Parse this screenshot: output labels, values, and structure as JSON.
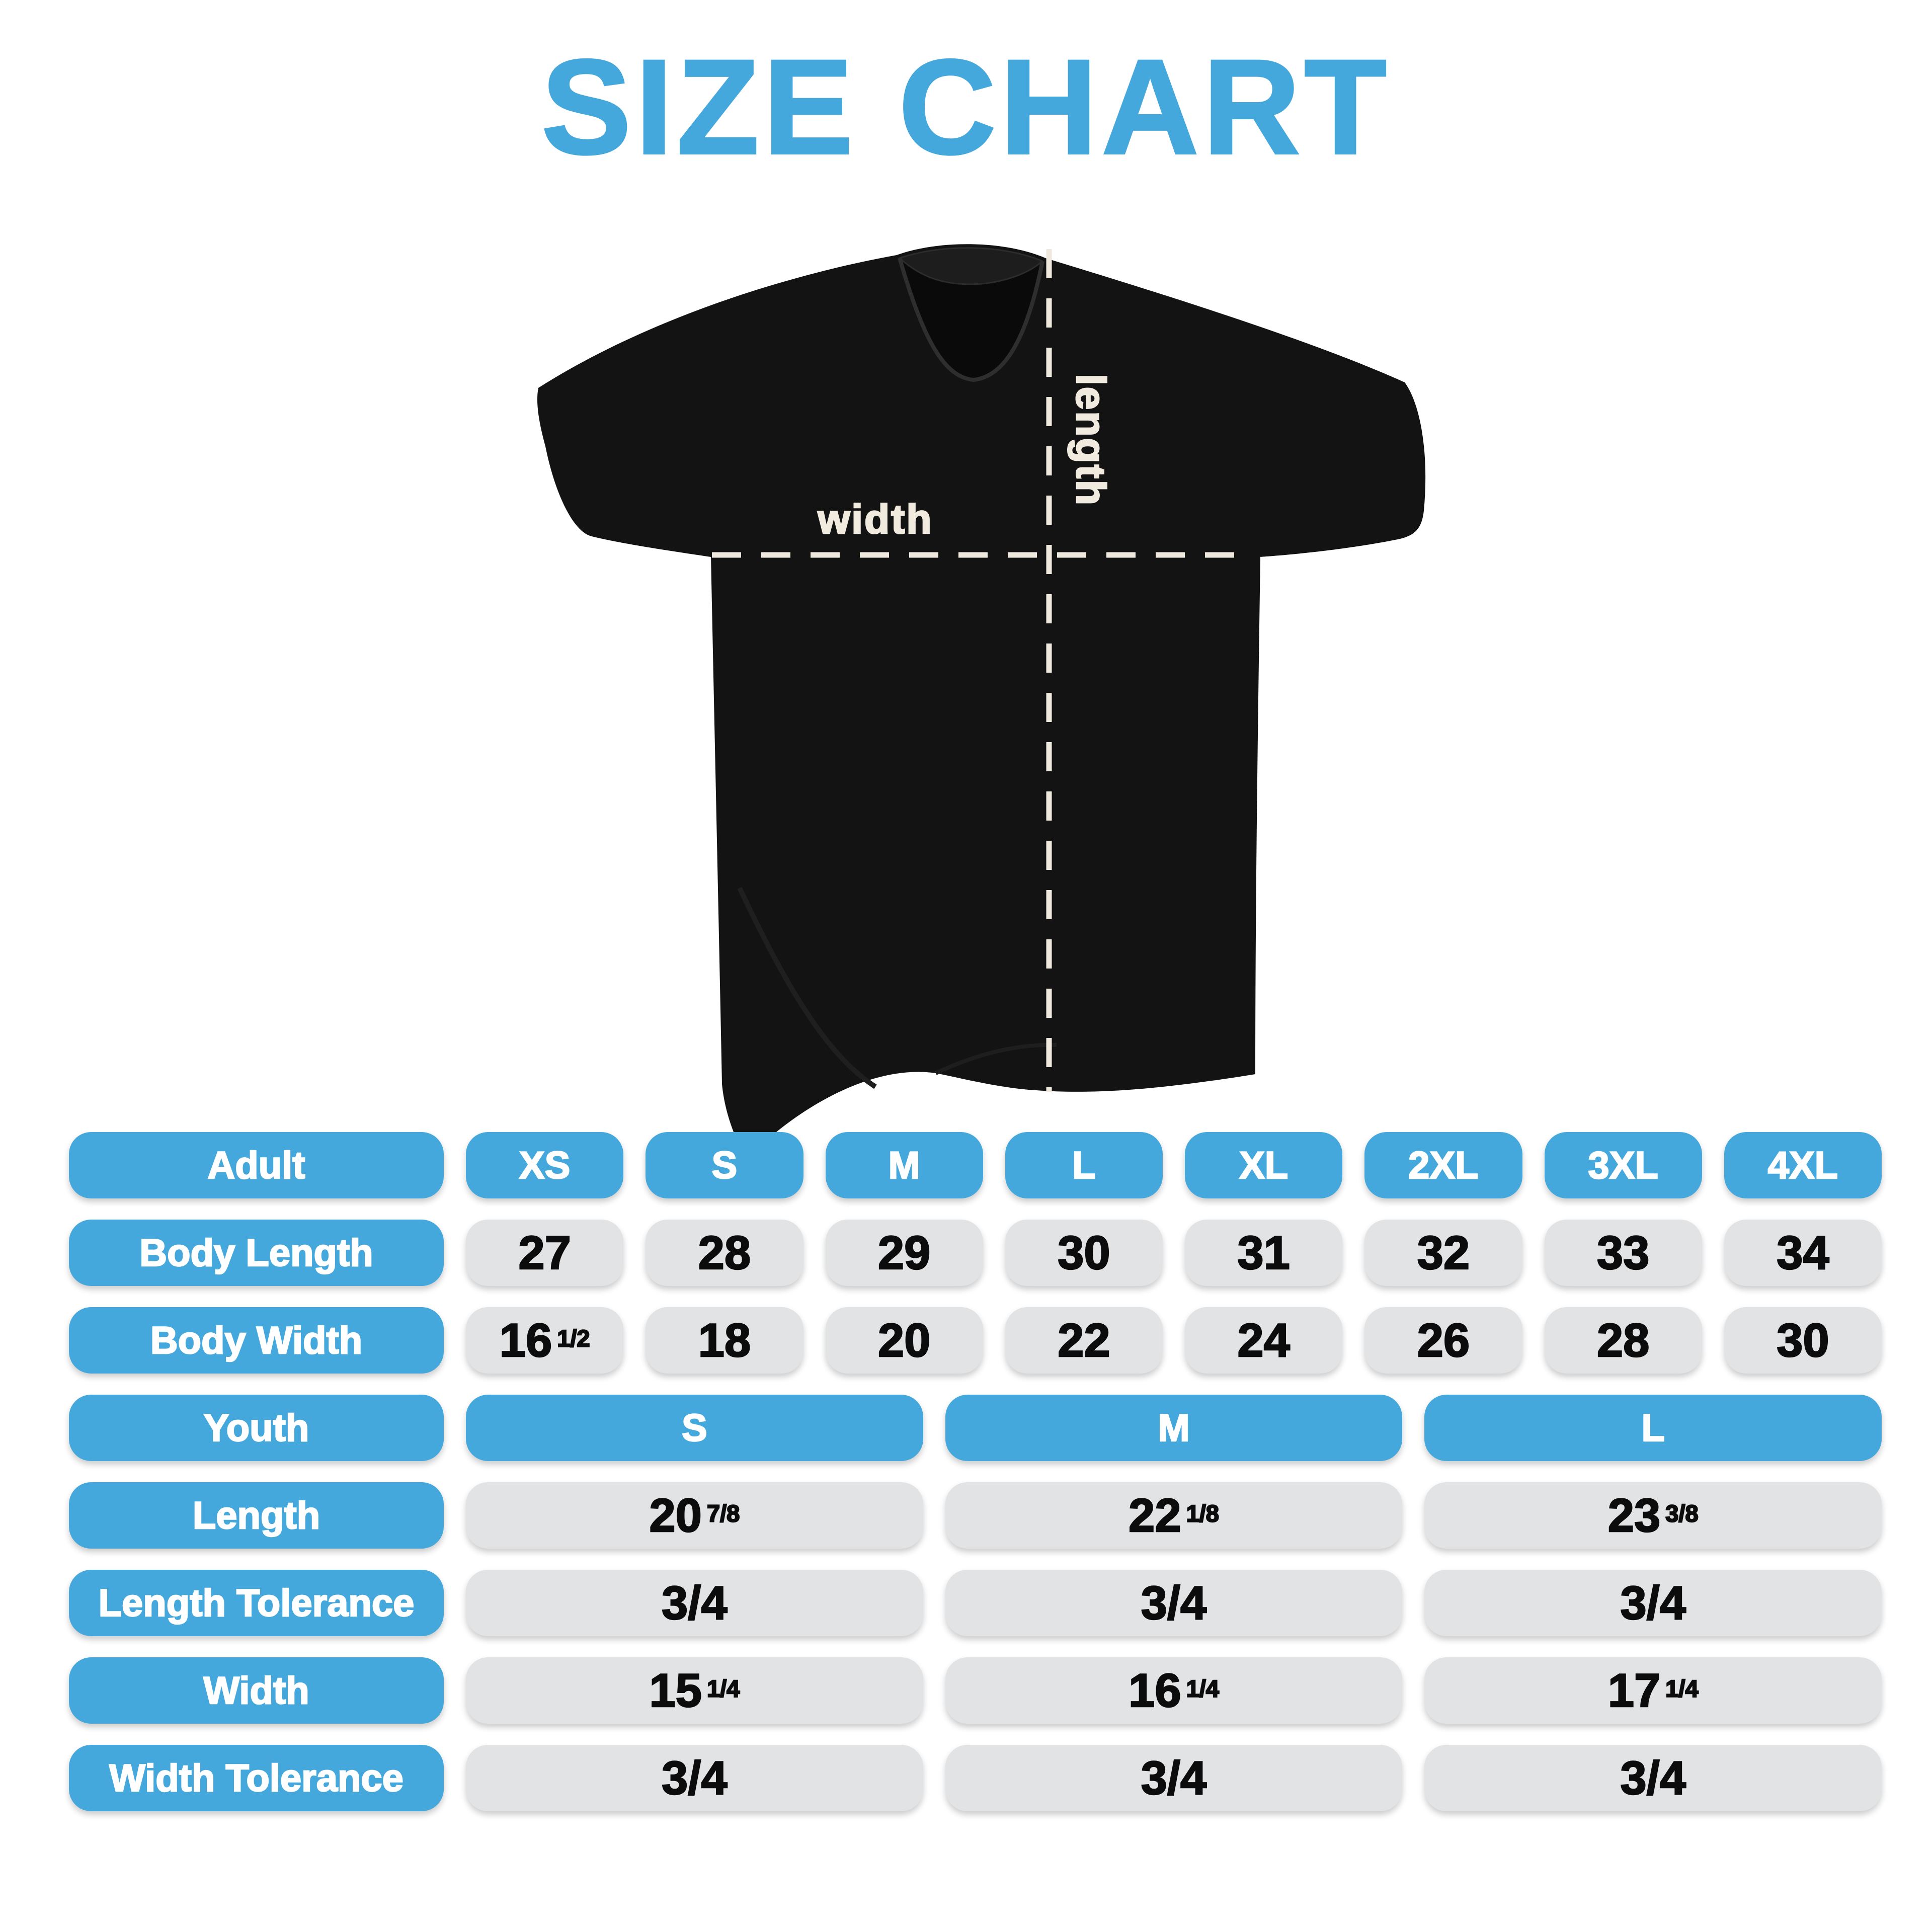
{
  "title": "SIZE CHART",
  "colors": {
    "accent_blue": "#45a8dd",
    "pill_gray": "#e2e3e5",
    "shirt_black": "#131313",
    "label_cream": "#f1eade"
  },
  "diagram": {
    "width_label": "width",
    "length_label": "length"
  },
  "adult_table": {
    "header": {
      "label": "Adult",
      "sizes": [
        "XS",
        "S",
        "M",
        "L",
        "XL",
        "2XL",
        "3XL",
        "4XL"
      ]
    },
    "rows": [
      {
        "label": "Body Length",
        "values": [
          "27",
          "28",
          "29",
          "30",
          "31",
          "32",
          "33",
          "34"
        ]
      },
      {
        "label": "Body Width",
        "values": [
          "16 1/2",
          "18",
          "20",
          "22",
          "24",
          "26",
          "28",
          "30"
        ]
      }
    ]
  },
  "youth_table": {
    "header": {
      "label": "Youth",
      "sizes": [
        "S",
        "M",
        "L"
      ]
    },
    "rows": [
      {
        "label": "Length",
        "values": [
          "20 7/8",
          "22 1/8",
          "23 3/8"
        ]
      },
      {
        "label": "Length Tolerance",
        "values": [
          "3/4",
          "3/4",
          "3/4"
        ]
      },
      {
        "label": "Width",
        "values": [
          "15 1/4",
          "16 1/4",
          "17 1/4"
        ]
      },
      {
        "label": "Width Tolerance",
        "values": [
          "3/4",
          "3/4",
          "3/4"
        ]
      }
    ]
  }
}
